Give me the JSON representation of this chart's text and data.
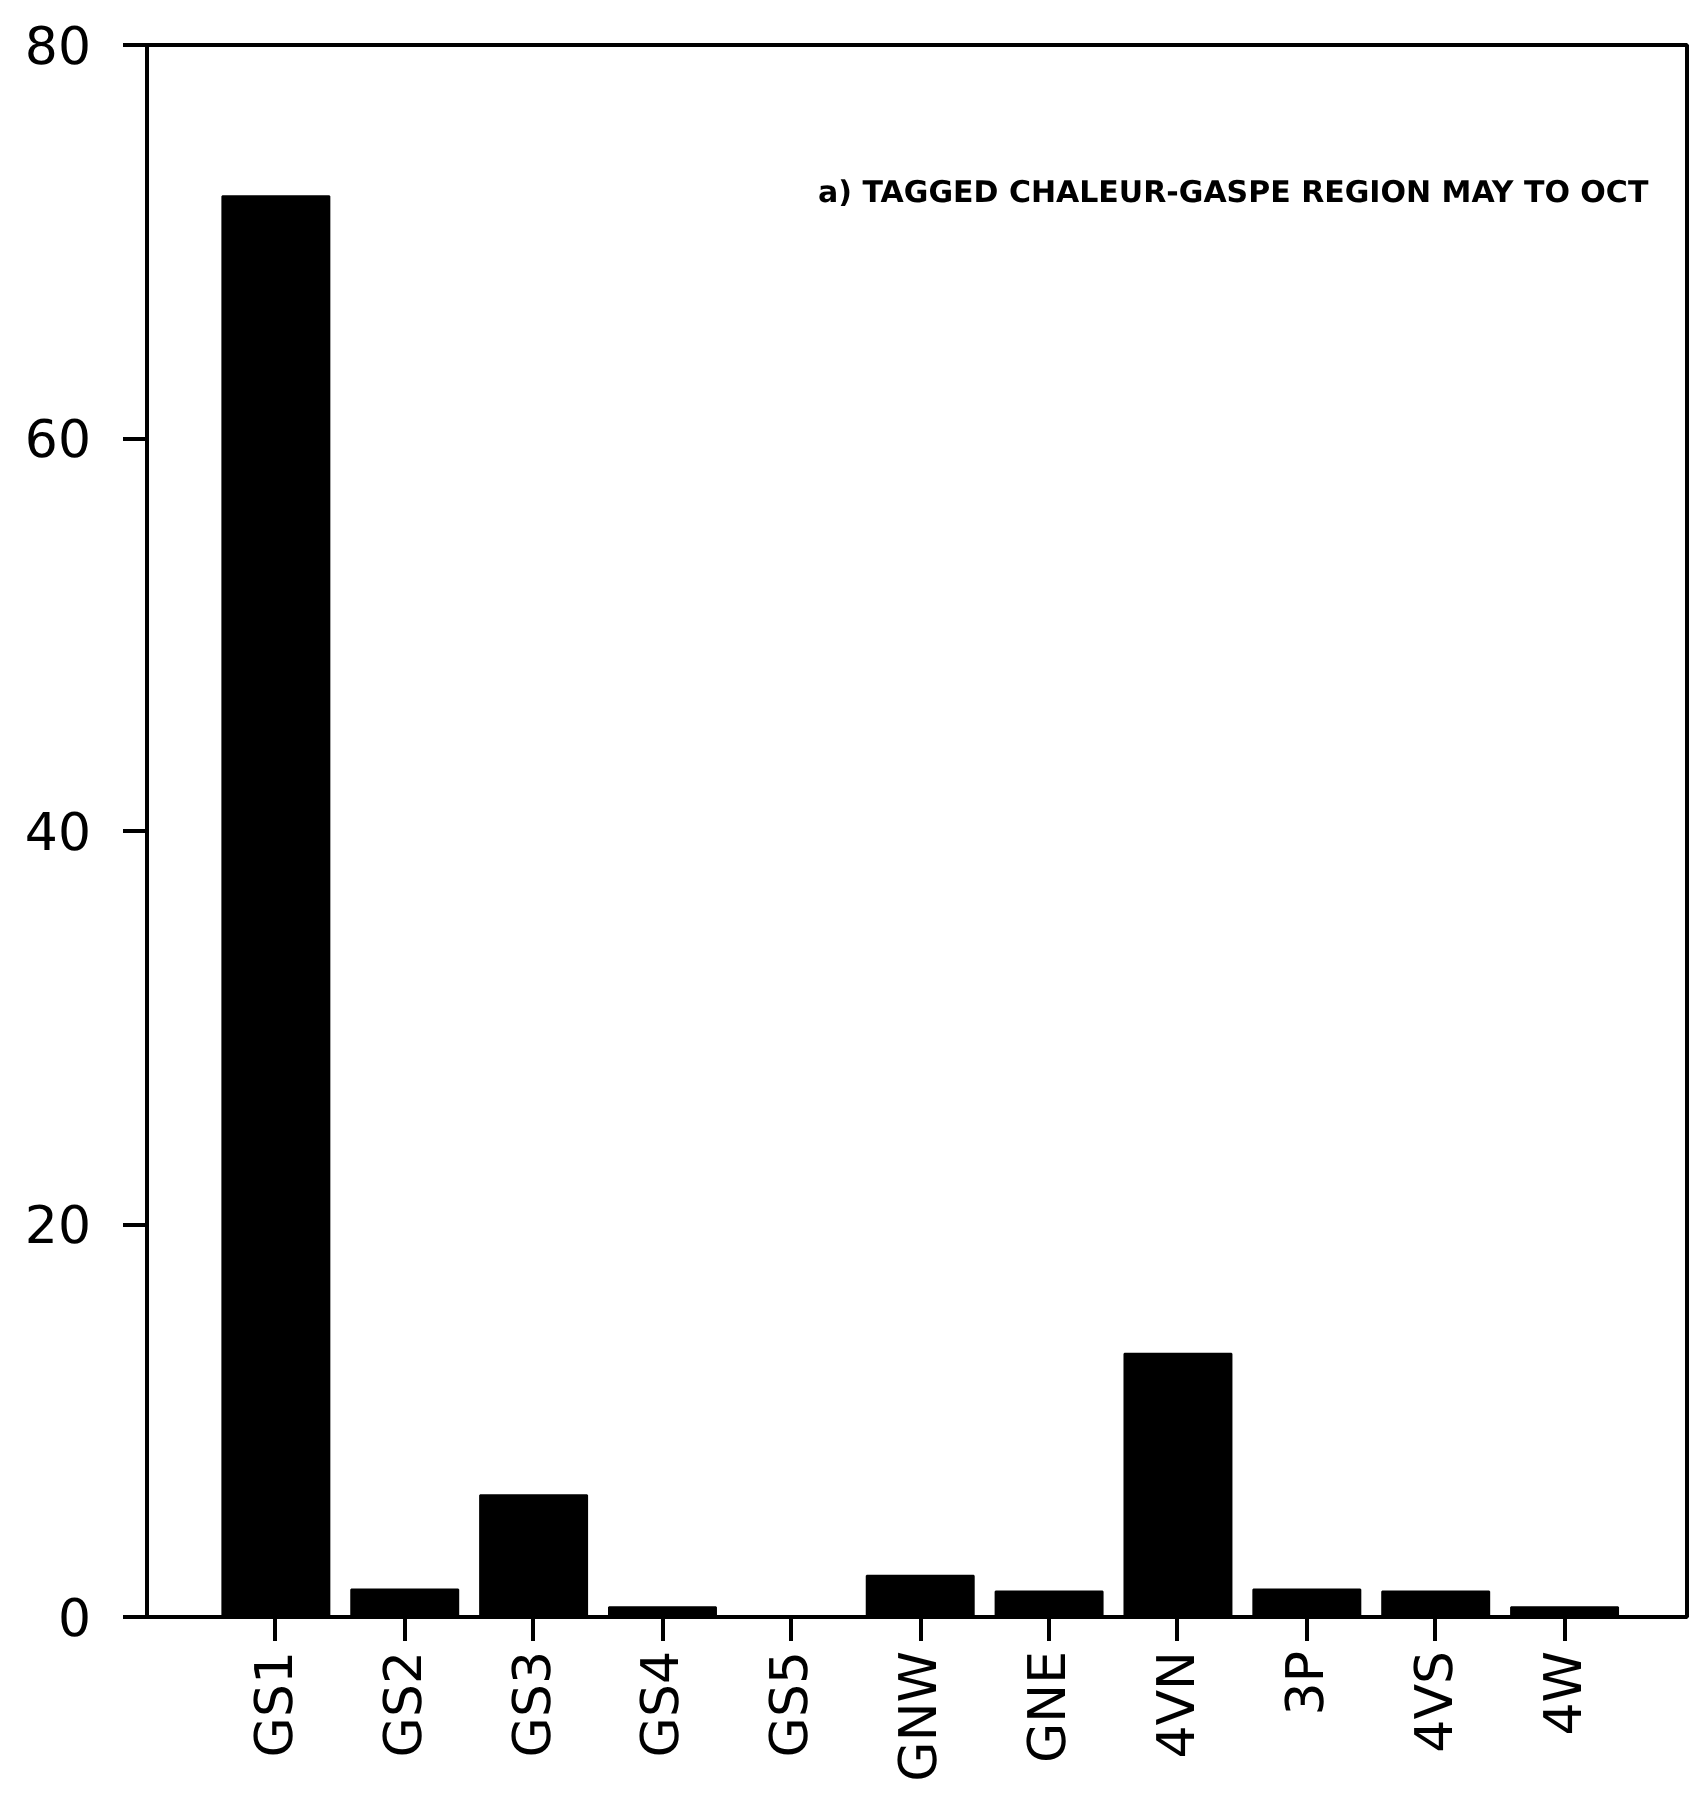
{
  "chart_data": {
    "type": "bar",
    "title": "a) TAGGED CHALEUR-GASPE REGION MAY TO OCT",
    "categories": [
      "GS1",
      "GS2",
      "GS3",
      "GS4",
      "GS5",
      "GNW",
      "GNE",
      "4VN",
      "3P",
      "4VS",
      "4W"
    ],
    "values": [
      72.3,
      1.4,
      6.2,
      0.5,
      0,
      2.1,
      1.3,
      13.4,
      1.4,
      1.3,
      0.5
    ],
    "color": "#000000",
    "ylim": [
      0,
      80
    ],
    "yticks": [
      0,
      20,
      40,
      60,
      80
    ],
    "grid": false
  }
}
